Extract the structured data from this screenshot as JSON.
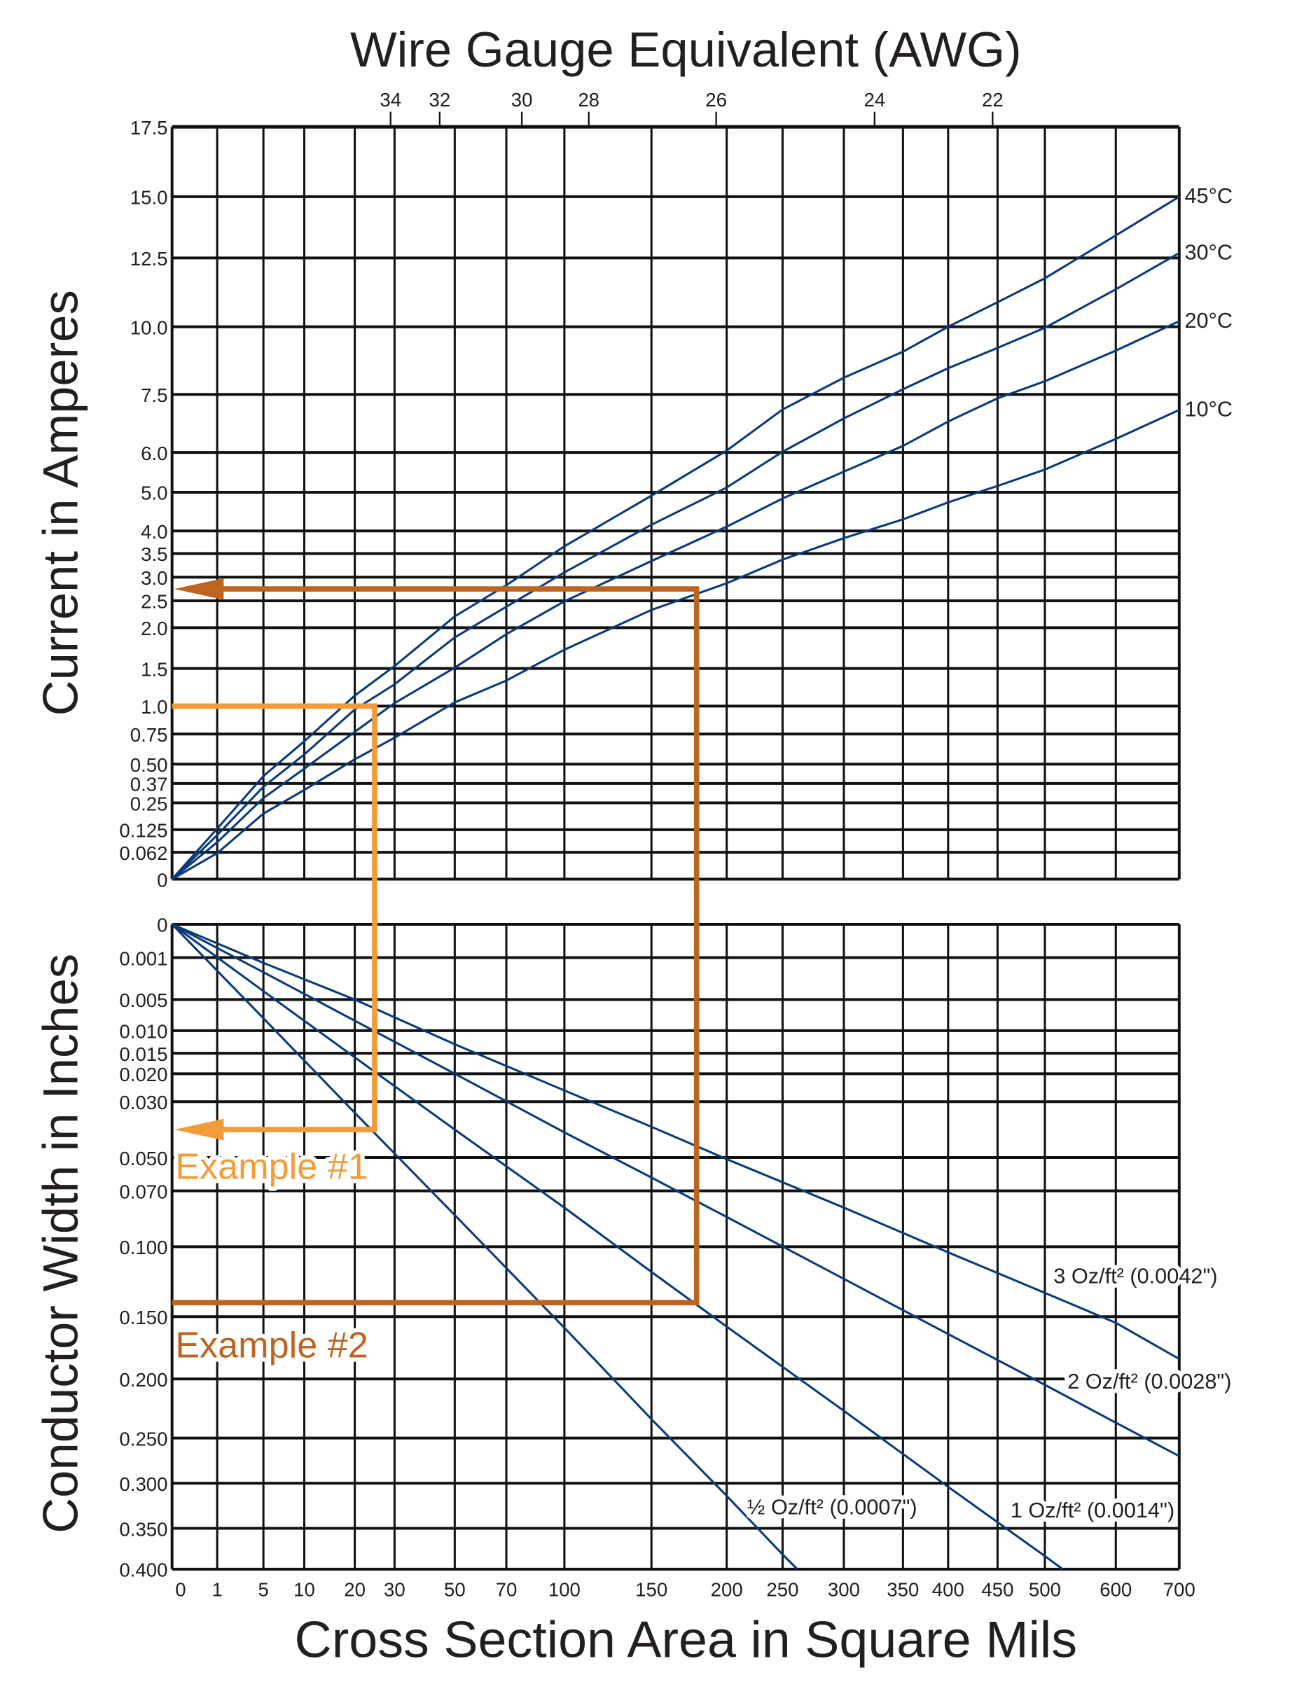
{
  "chart_data": [
    {
      "type": "line",
      "title": "Wire Gauge Equivalent (AWG)",
      "xlabel": "Cross Section Area in Square Mils",
      "ylabel": "Current in Amperes",
      "x_ticks": [
        "0",
        "1",
        "5",
        "10",
        "20",
        "30",
        "50",
        "70",
        "100",
        "150",
        "200",
        "250",
        "300",
        "350",
        "400",
        "450",
        "500",
        "600",
        "700"
      ],
      "x_tick_values": [
        0,
        1,
        5,
        10,
        20,
        30,
        50,
        70,
        100,
        150,
        200,
        250,
        300,
        350,
        400,
        450,
        500,
        600,
        700
      ],
      "y_ticks": [
        "17.5",
        "15.0",
        "12.5",
        "10.0",
        "7.5",
        "6.0",
        "5.0",
        "4.0",
        "3.5",
        "3.0",
        "2.5",
        "2.0",
        "1.5",
        "1.0",
        "0.75",
        "0.50",
        "0.37",
        "0.25",
        "0.125",
        "0.062",
        "0"
      ],
      "y_tick_values": [
        17.5,
        15.0,
        12.5,
        10.0,
        7.5,
        6.0,
        5.0,
        4.0,
        3.5,
        3.0,
        2.5,
        2.0,
        1.5,
        1.0,
        0.75,
        0.5,
        0.37,
        0.25,
        0.125,
        0.062,
        0
      ],
      "xlim": [
        0,
        700
      ],
      "ylim": [
        0,
        17.5
      ],
      "grid": true,
      "top_axis": {
        "label": "Wire Gauge Equivalent (AWG)",
        "ticks": [
          {
            "label": "34",
            "x": 29
          },
          {
            "label": "32",
            "x": 45
          },
          {
            "label": "30",
            "x": 78
          },
          {
            "label": "28",
            "x": 114
          },
          {
            "label": "26",
            "x": 193
          },
          {
            "label": "24",
            "x": 326
          },
          {
            "label": "22",
            "x": 445
          }
        ]
      },
      "x": [
        0,
        1,
        5,
        10,
        20,
        30,
        50,
        70,
        100,
        150,
        200,
        250,
        300,
        350,
        400,
        450,
        500,
        600,
        700
      ],
      "series": [
        {
          "name": "45°C",
          "values": [
            0,
            0.13,
            0.42,
            0.69,
            1.14,
            1.53,
            2.21,
            2.83,
            3.66,
            4.91,
            6.05,
            7.11,
            8.12,
            9.08,
            10.0,
            10.89,
            11.76,
            13.42,
            15.0
          ]
        },
        {
          "name": "30°C",
          "values": [
            0,
            0.11,
            0.35,
            0.58,
            0.97,
            1.29,
            1.88,
            2.39,
            3.1,
            4.16,
            5.12,
            6.02,
            6.88,
            7.69,
            8.47,
            9.22,
            9.96,
            11.36,
            12.7
          ]
        },
        {
          "name": "20°C",
          "values": [
            0,
            0.09,
            0.28,
            0.47,
            0.77,
            1.04,
            1.51,
            1.92,
            2.49,
            3.34,
            4.11,
            4.84,
            5.52,
            6.17,
            6.8,
            7.4,
            7.99,
            9.12,
            10.2
          ]
        },
        {
          "name": "10°C",
          "values": [
            0,
            0.06,
            0.2,
            0.33,
            0.54,
            0.72,
            1.05,
            1.34,
            1.73,
            2.33,
            2.87,
            3.37,
            3.84,
            4.3,
            4.74,
            5.16,
            5.57,
            6.35,
            7.1
          ]
        }
      ],
      "line_color": "#0a3a78"
    },
    {
      "type": "line",
      "xlabel": "Cross Section Area in Square Mils",
      "ylabel": "Conductor Width in Inches",
      "y_ticks": [
        "0",
        "0.001",
        "0.005",
        "0.010",
        "0.015",
        "0.020",
        "0.030",
        "0.050",
        "0.070",
        "0.100",
        "0.150",
        "0.200",
        "0.250",
        "0.300",
        "0.350",
        "0.400"
      ],
      "y_tick_values": [
        0,
        0.001,
        0.005,
        0.01,
        0.015,
        0.02,
        0.03,
        0.05,
        0.07,
        0.1,
        0.15,
        0.2,
        0.25,
        0.3,
        0.35,
        0.4
      ],
      "ylim": [
        0,
        0.4
      ],
      "y_inverted": true,
      "grid": true,
      "series": [
        {
          "name": "3 Oz/ft² (0.0042\")",
          "points": [
            [
              0,
              0
            ],
            [
              5,
              0.0015
            ],
            [
              20,
              0.005
            ],
            [
              50,
              0.013
            ],
            [
              100,
              0.026
            ],
            [
              150,
              0.039
            ],
            [
              200,
              0.051
            ],
            [
              300,
              0.079
            ],
            [
              400,
              0.104
            ],
            [
              500,
              0.133
            ],
            [
              600,
              0.155
            ],
            [
              700,
              0.184
            ]
          ]
        },
        {
          "name": "2 Oz/ft² (0.0028\")",
          "points": [
            [
              0,
              0
            ],
            [
              5,
              0.0024
            ],
            [
              20,
              0.0084
            ],
            [
              50,
              0.02
            ],
            [
              100,
              0.041
            ],
            [
              150,
              0.062
            ],
            [
              200,
              0.084
            ],
            [
              300,
              0.123
            ],
            [
              400,
              0.164
            ],
            [
              500,
              0.205
            ],
            [
              600,
              0.237
            ],
            [
              700,
              0.27
            ]
          ]
        },
        {
          "name": "½ Oz/ft² (0.0007\")",
          "points": [
            [
              0,
              0
            ],
            [
              5,
              0.008
            ],
            [
              20,
              0.034
            ],
            [
              50,
              0.083
            ],
            [
              100,
              0.159
            ],
            [
              150,
              0.234
            ],
            [
              200,
              0.314
            ],
            [
              250,
              0.382
            ],
            [
              262,
              0.4
            ]
          ]
        },
        {
          "name": "1 Oz/ft² (0.0014\")",
          "points": [
            [
              0,
              0
            ],
            [
              5,
              0.0042
            ],
            [
              20,
              0.016
            ],
            [
              50,
              0.04
            ],
            [
              100,
              0.079
            ],
            [
              150,
              0.118
            ],
            [
              200,
              0.158
            ],
            [
              300,
              0.227
            ],
            [
              400,
              0.304
            ],
            [
              500,
              0.384
            ],
            [
              525,
              0.4
            ]
          ]
        }
      ],
      "line_color": "#0a3a78"
    }
  ],
  "examples": [
    {
      "label": "Example #1",
      "color": "#f29b3a",
      "current": 1.0,
      "area": 25,
      "width": 0.04
    },
    {
      "label": "Example #2",
      "color": "#bd6420",
      "current": 2.75,
      "area": 180,
      "width": 0.14
    }
  ]
}
